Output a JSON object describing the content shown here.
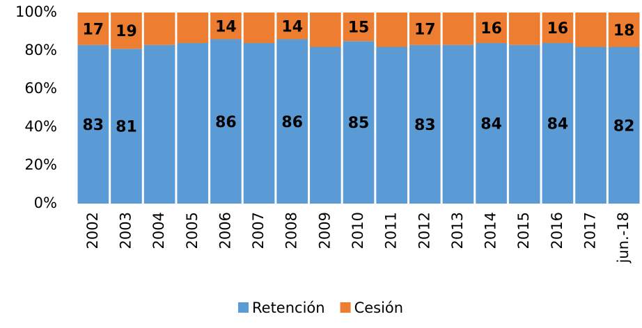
{
  "chart_data": {
    "type": "stacked_bar",
    "categories": [
      "2002",
      "2003",
      "2004",
      "2005",
      "2006",
      "2007",
      "2008",
      "2009",
      "2010",
      "2011",
      "2012",
      "2013",
      "2014",
      "2015",
      "2016",
      "2017",
      "jun.-18"
    ],
    "series": [
      {
        "name": "Retención",
        "color": "#5b9bd5",
        "values": [
          83,
          81,
          83,
          84,
          86,
          84,
          86,
          82,
          85,
          82,
          83,
          83,
          84,
          83,
          84,
          82,
          82
        ],
        "value_labels": [
          "83",
          "81",
          null,
          null,
          "86",
          null,
          "86",
          null,
          "85",
          null,
          "83",
          null,
          "84",
          null,
          "84",
          null,
          "82"
        ]
      },
      {
        "name": "Cesión",
        "color": "#ed7d31",
        "values": [
          17,
          19,
          17,
          16,
          14,
          16,
          14,
          18,
          15,
          18,
          17,
          17,
          16,
          17,
          16,
          18,
          18
        ],
        "value_labels": [
          "17",
          "19",
          null,
          null,
          "14",
          null,
          "14",
          null,
          "15",
          null,
          "17",
          null,
          "16",
          null,
          "16",
          null,
          "18"
        ]
      }
    ],
    "ylim": [
      0,
      100
    ],
    "yticks": [
      {
        "value": 0,
        "label": "0%"
      },
      {
        "value": 20,
        "label": "20%"
      },
      {
        "value": 40,
        "label": "40%"
      },
      {
        "value": 60,
        "label": "60%"
      },
      {
        "value": 80,
        "label": "80%"
      },
      {
        "value": 100,
        "label": "100%"
      }
    ],
    "grid": false,
    "legend": "bottom"
  }
}
